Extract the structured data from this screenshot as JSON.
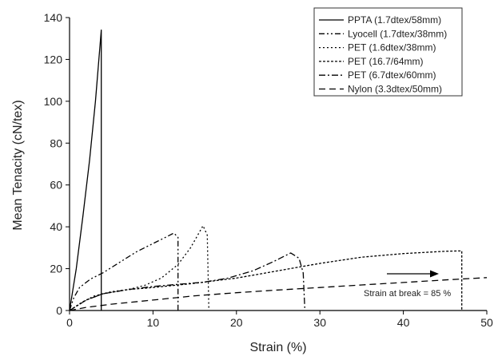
{
  "chart_data": {
    "type": "line",
    "title": "",
    "xlabel": "Strain (%)",
    "ylabel": "Mean Tenacity (cN/tex)",
    "xlim": [
      0,
      50
    ],
    "ylim": [
      0,
      140
    ],
    "x_ticks": [
      "0",
      "10",
      "20",
      "30",
      "40",
      "50"
    ],
    "y_ticks": [
      "0",
      "20",
      "40",
      "60",
      "80",
      "100",
      "120",
      "140"
    ],
    "grid": false,
    "legend_position": "top-right",
    "annotation": "Strain at break = 85 %",
    "series": [
      {
        "name": "PPTA (1.7dtex/58mm)",
        "dash": "solid",
        "color": "#000000",
        "points": [
          [
            0,
            0
          ],
          [
            0.8,
            20
          ],
          [
            1.6,
            45
          ],
          [
            2.4,
            72
          ],
          [
            3.1,
            100
          ],
          [
            3.8,
            134
          ],
          [
            3.8,
            0
          ]
        ]
      },
      {
        "name": "Lyocell (1.7dtex/38mm)",
        "dash": "dash-dot-dot",
        "color": "#000000",
        "points": [
          [
            0,
            0
          ],
          [
            0.5,
            6
          ],
          [
            1.2,
            11
          ],
          [
            2.5,
            15
          ],
          [
            4,
            18
          ],
          [
            6,
            23
          ],
          [
            8,
            28
          ],
          [
            10,
            32
          ],
          [
            11.5,
            35
          ],
          [
            12.5,
            37
          ],
          [
            13,
            35
          ],
          [
            13,
            0
          ]
        ]
      },
      {
        "name": "PET (1.6dtex/38mm)",
        "dash": "dot",
        "color": "#000000",
        "points": [
          [
            0,
            0
          ],
          [
            1.5,
            4
          ],
          [
            3,
            7
          ],
          [
            5,
            9
          ],
          [
            7,
            10
          ],
          [
            9,
            12
          ],
          [
            11,
            15.5
          ],
          [
            13,
            22
          ],
          [
            14.5,
            30
          ],
          [
            15.5,
            37
          ],
          [
            16,
            40.5
          ],
          [
            16.5,
            36
          ],
          [
            16.7,
            0
          ]
        ]
      },
      {
        "name": "PET (16.7/64mm)",
        "dash": "short-dash",
        "color": "#000000",
        "points": [
          [
            0,
            0
          ],
          [
            2,
            5
          ],
          [
            4,
            8
          ],
          [
            7,
            10
          ],
          [
            10,
            11
          ],
          [
            15,
            13
          ],
          [
            20,
            15.5
          ],
          [
            25,
            19
          ],
          [
            30,
            22.5
          ],
          [
            35,
            25.5
          ],
          [
            40,
            27.2
          ],
          [
            45,
            28.3
          ],
          [
            47,
            28.5
          ],
          [
            47,
            0
          ]
        ]
      },
      {
        "name": "PET (6.7dtex/60mm)",
        "dash": "dash-dot",
        "color": "#000000",
        "points": [
          [
            0,
            0
          ],
          [
            2,
            5
          ],
          [
            4,
            8
          ],
          [
            7,
            10
          ],
          [
            10,
            11.5
          ],
          [
            13,
            12.5
          ],
          [
            16,
            13.5
          ],
          [
            19,
            15.5
          ],
          [
            22,
            19
          ],
          [
            24.5,
            23.5
          ],
          [
            26.5,
            27.5
          ],
          [
            27.5,
            25
          ],
          [
            28,
            18
          ],
          [
            28.2,
            0
          ]
        ]
      },
      {
        "name": "Nylon (3.3dtex/50mm)",
        "dash": "long-dash",
        "color": "#000000",
        "points": [
          [
            0,
            0
          ],
          [
            2,
            1.5
          ],
          [
            5,
            3
          ],
          [
            10,
            5
          ],
          [
            15,
            7
          ],
          [
            20,
            8.5
          ],
          [
            25,
            9.8
          ],
          [
            30,
            11
          ],
          [
            35,
            12.2
          ],
          [
            40,
            13.4
          ],
          [
            45,
            14.6
          ],
          [
            50,
            15.7
          ]
        ]
      }
    ]
  }
}
